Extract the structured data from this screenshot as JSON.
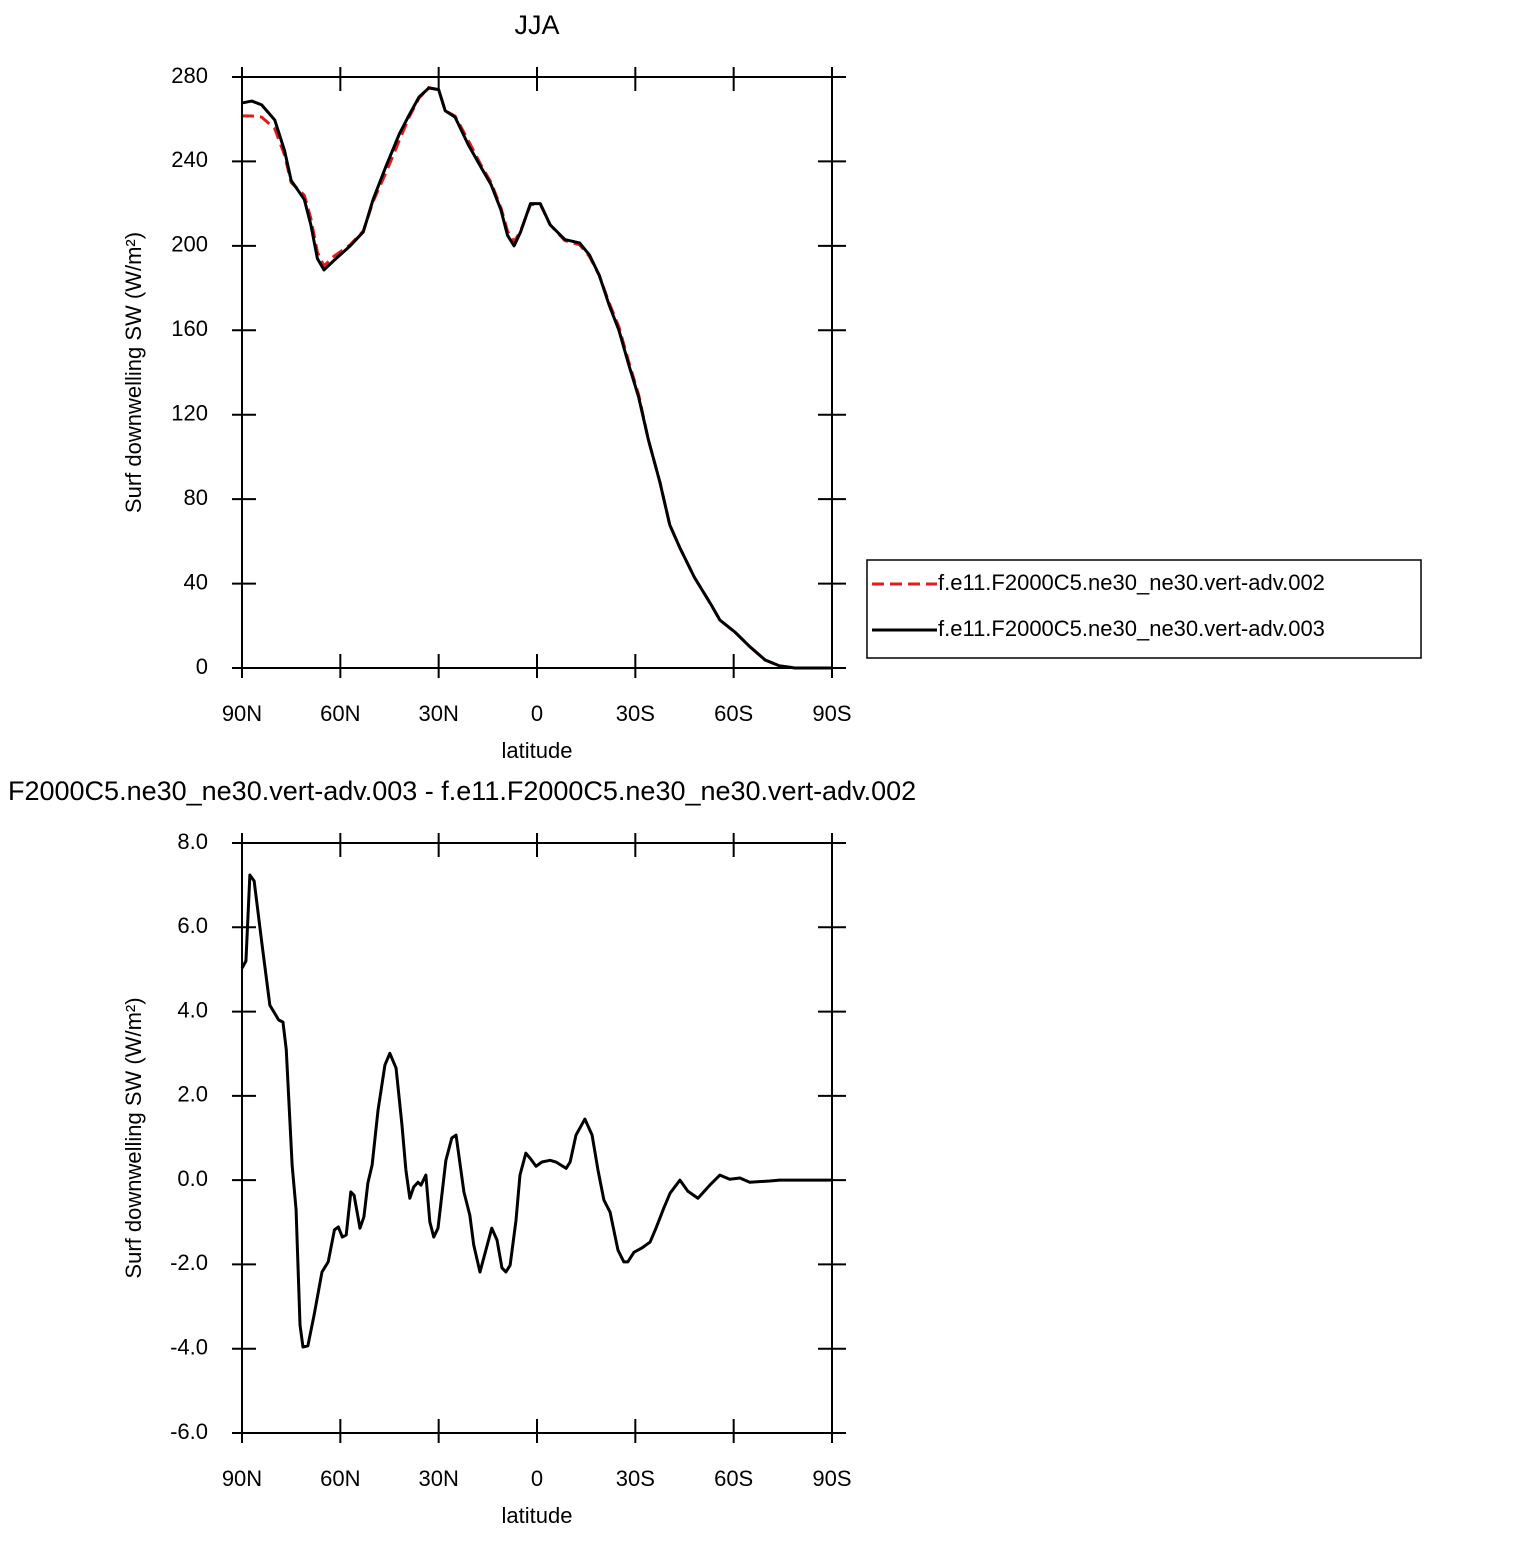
{
  "chart_data": [
    {
      "type": "line",
      "title": "JJA",
      "xlabel": "latitude",
      "ylabel": "Surf downwelling SW (W/m²)",
      "x": [
        90,
        87,
        84,
        80,
        77,
        75,
        71,
        69,
        67,
        65,
        62,
        57,
        53,
        50,
        46,
        42,
        39,
        36,
        33,
        30,
        28,
        25,
        21,
        17,
        14,
        11,
        9,
        7,
        5,
        2,
        -1,
        -4,
        -8.5,
        -13,
        -16,
        -19,
        -22,
        -25,
        -28,
        -31,
        -34,
        -37.5,
        -40.5,
        -43.6,
        -48,
        -53,
        -55.8,
        -60.4,
        -65,
        -69.6,
        -74,
        -78.7,
        -90
      ],
      "series": [
        {
          "name": "f.e11.F2000C5.ne30_ne30.vert-adv.002",
          "color": "#e41a1c",
          "line_style": "dashed",
          "values": [
            261.6,
            261.5,
            261,
            255.5,
            243,
            230,
            224,
            213,
            197,
            190.5,
            195,
            200.5,
            207,
            221,
            235,
            250,
            261,
            270,
            275,
            274,
            264,
            261.5,
            250,
            238,
            230,
            218,
            207,
            202,
            207,
            219.5,
            219.8,
            210,
            202.5,
            200.5,
            195,
            186,
            173,
            161.5,
            145,
            129.5,
            108,
            88,
            67.8,
            56.9,
            43,
            30.3,
            22.7,
            17,
            10,
            3.8,
            1,
            0,
            0
          ]
        },
        {
          "name": "f.e11.F2000C5.ne30_ne30.vert-adv.003",
          "color": "#000000",
          "line_style": "solid",
          "values": [
            267.7,
            268.6,
            266.8,
            259.6,
            245,
            231,
            222,
            210,
            194,
            188.6,
            193,
            200,
            206.6,
            222,
            238,
            253,
            262,
            270.5,
            274.8,
            274,
            264,
            261,
            248,
            237,
            229,
            217,
            205,
            200,
            206.6,
            220,
            220,
            210,
            203,
            201.4,
            195.7,
            186,
            172,
            160,
            143.6,
            128.4,
            108,
            88,
            67.8,
            56.9,
            43,
            30.3,
            22.7,
            17,
            10,
            3.8,
            1,
            0,
            0
          ]
        }
      ],
      "xlim": [
        90,
        -90
      ],
      "xticks": [
        {
          "value": 90,
          "label": "90N"
        },
        {
          "value": 60,
          "label": "60N"
        },
        {
          "value": 30,
          "label": "30N"
        },
        0,
        {
          "value": -30,
          "label": "30S"
        },
        {
          "value": -60,
          "label": "60S"
        },
        {
          "value": -90,
          "label": "90S"
        }
      ],
      "ylim": [
        0,
        280
      ],
      "yticks": [
        0,
        40,
        80,
        120,
        160,
        200,
        240,
        280
      ],
      "legend": "right"
    },
    {
      "type": "line",
      "title": "F2000C5.ne30_ne30.vert-adv.003 - f.e11.F2000C5.ne30_ne30.vert-adv.002",
      "xlabel": "latitude",
      "ylabel": "Surf downwelling SW (W/m²)",
      "x": [
        90,
        88.8,
        87.6,
        86.3,
        83.9,
        81.5,
        78.8,
        77.5,
        76.5,
        74.7,
        73.5,
        72.3,
        71.4,
        69.9,
        68,
        65.6,
        63.7,
        61.8,
        60.6,
        59.4,
        58.2,
        56.8,
        55.8,
        54,
        52.8,
        51.6,
        50.3,
        48.5,
        46.4,
        44.9,
        43,
        41.2,
        40,
        38.8,
        37.6,
        36.3,
        35.4,
        33.9,
        32.7,
        31.5,
        30.2,
        27.8,
        26,
        24.7,
        22.3,
        20.5,
        19.3,
        17.4,
        15.6,
        13.8,
        12.2,
        10.7,
        9.5,
        8.2,
        6.4,
        5.2,
        3.4,
        2.1,
        0.3,
        -1.5,
        -4,
        -5.8,
        -8.9,
        -10.1,
        -11.9,
        -14.6,
        -16.8,
        -18.6,
        -20.4,
        -22.3,
        -24.7,
        -26.5,
        -27.7,
        -29.6,
        -32,
        -34.5,
        -36.3,
        -38.7,
        -40.6,
        -43.6,
        -46,
        -49.1,
        -52.7,
        -55.8,
        -58.8,
        -61.9,
        -64.9,
        -71,
        -74,
        -90
      ],
      "values": [
        5.03,
        5.2,
        7.24,
        7.1,
        5.6,
        4.15,
        3.8,
        3.75,
        3.1,
        0.35,
        -0.7,
        -3.44,
        -3.96,
        -3.93,
        -3.2,
        -2.18,
        -1.94,
        -1.18,
        -1.11,
        -1.35,
        -1.3,
        -0.28,
        -0.36,
        -1.14,
        -0.87,
        -0.07,
        0.36,
        1.66,
        2.73,
        3.01,
        2.66,
        1.31,
        0.24,
        -0.43,
        -0.16,
        -0.05,
        -0.12,
        0.12,
        -0.99,
        -1.35,
        -1.14,
        0.47,
        1.0,
        1.07,
        -0.28,
        -0.83,
        -1.54,
        -2.18,
        -1.66,
        -1.14,
        -1.42,
        -2.08,
        -2.18,
        -2.02,
        -0.95,
        0.12,
        0.64,
        0.52,
        0.33,
        0.43,
        0.47,
        0.43,
        0.28,
        0.43,
        1.07,
        1.45,
        1.07,
        0.24,
        -0.47,
        -0.76,
        -1.66,
        -1.94,
        -1.94,
        -1.71,
        -1.61,
        -1.47,
        -1.14,
        -0.66,
        -0.31,
        0,
        -0.26,
        -0.43,
        -0.12,
        0.12,
        0.02,
        0.05,
        -0.05,
        -0.02,
        0,
        0
      ],
      "color": "#000000",
      "line_style": "solid",
      "xlim": [
        90,
        -90
      ],
      "xticks": [
        {
          "value": 90,
          "label": "90N"
        },
        {
          "value": 60,
          "label": "60N"
        },
        {
          "value": 30,
          "label": "30N"
        },
        0,
        {
          "value": -30,
          "label": "30S"
        },
        {
          "value": -60,
          "label": "60S"
        },
        {
          "value": -90,
          "label": "90S"
        }
      ],
      "ylim": [
        -6,
        8
      ],
      "yticks": [
        {
          "value": -6,
          "label": "-6.0"
        },
        {
          "value": -4,
          "label": "-4.0"
        },
        {
          "value": -2,
          "label": "-2.0"
        },
        {
          "value": 0,
          "label": "0.0"
        },
        {
          "value": 2,
          "label": "2.0"
        },
        {
          "value": 4,
          "label": "4.0"
        },
        {
          "value": 6,
          "label": "6.0"
        },
        {
          "value": 8,
          "label": "8.0"
        }
      ]
    }
  ]
}
